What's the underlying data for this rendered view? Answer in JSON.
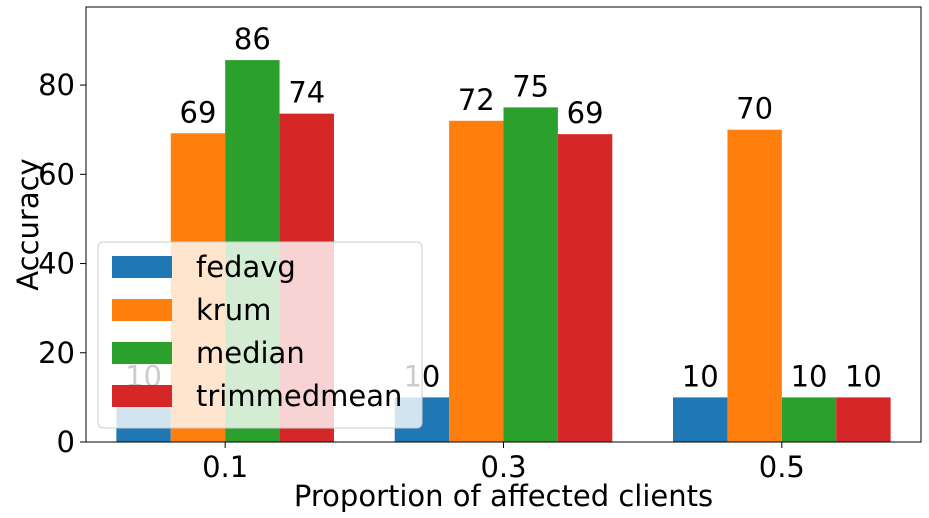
{
  "chart_data": {
    "type": "bar",
    "categories": [
      "0.1",
      "0.3",
      "0.5"
    ],
    "series": [
      {
        "name": "fedavg",
        "values": [
          10,
          10,
          10
        ],
        "labels": [
          "10",
          "10",
          "10"
        ],
        "color": "#1f77b4"
      },
      {
        "name": "krum",
        "values": [
          69.2,
          72,
          70
        ],
        "labels": [
          "69",
          "72",
          "70"
        ],
        "color": "#ff7f0e"
      },
      {
        "name": "median",
        "values": [
          85.6,
          75,
          10
        ],
        "labels": [
          "86",
          "75",
          "10"
        ],
        "color": "#2ca02c"
      },
      {
        "name": "trimmedmean",
        "values": [
          73.6,
          69,
          10
        ],
        "labels": [
          "74",
          "69",
          "10"
        ],
        "color": "#d62728"
      }
    ],
    "title": "",
    "xlabel": "Proportion of affected clients",
    "ylabel": "Accuracy",
    "ylim": [
      0,
      97.5
    ],
    "yticks": [
      "0",
      "20",
      "40",
      "60",
      "80"
    ],
    "grid": false,
    "legend_position": "lower-left"
  }
}
